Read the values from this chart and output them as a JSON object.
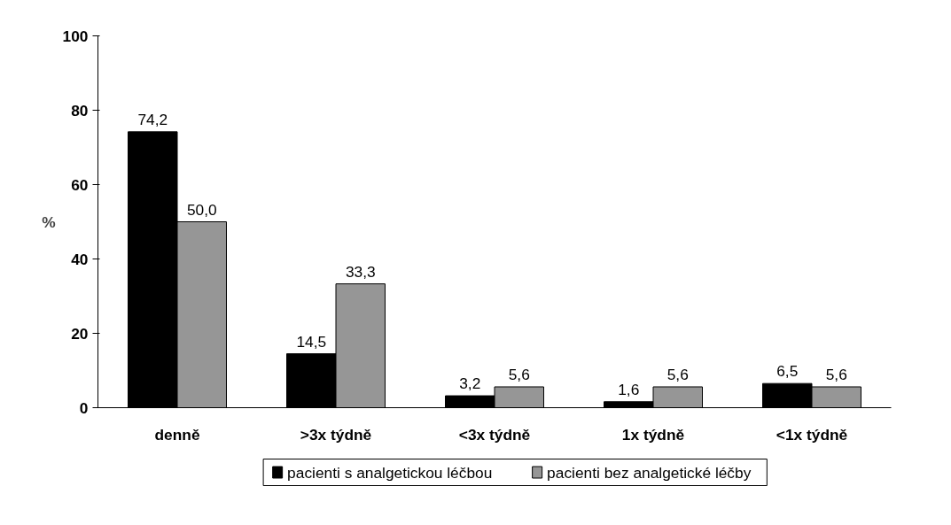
{
  "chart_data": {
    "type": "bar",
    "ylabel": "%",
    "categories": [
      "denně",
      ">3x týdně",
      "<3x týdně",
      "1x týdně",
      "<1x týdně"
    ],
    "series": [
      {
        "name": "pacienti s analgetickou léčbou",
        "color": "#000000",
        "values": [
          74.2,
          14.5,
          3.2,
          1.6,
          6.5
        ],
        "value_labels": [
          "74,2",
          "14,5",
          "3,2",
          "1,6",
          "6,5"
        ]
      },
      {
        "name": "pacienti bez analgetické léčby",
        "color": "#969696",
        "values": [
          50.0,
          33.3,
          5.6,
          5.6,
          5.6
        ],
        "value_labels": [
          "50,0",
          "33,3",
          "5,6",
          "5,6",
          "5,6"
        ]
      }
    ],
    "ylim": [
      0,
      100
    ],
    "yticks": [
      0,
      20,
      40,
      60,
      80,
      100
    ],
    "grid": false,
    "legend": "bottom"
  }
}
